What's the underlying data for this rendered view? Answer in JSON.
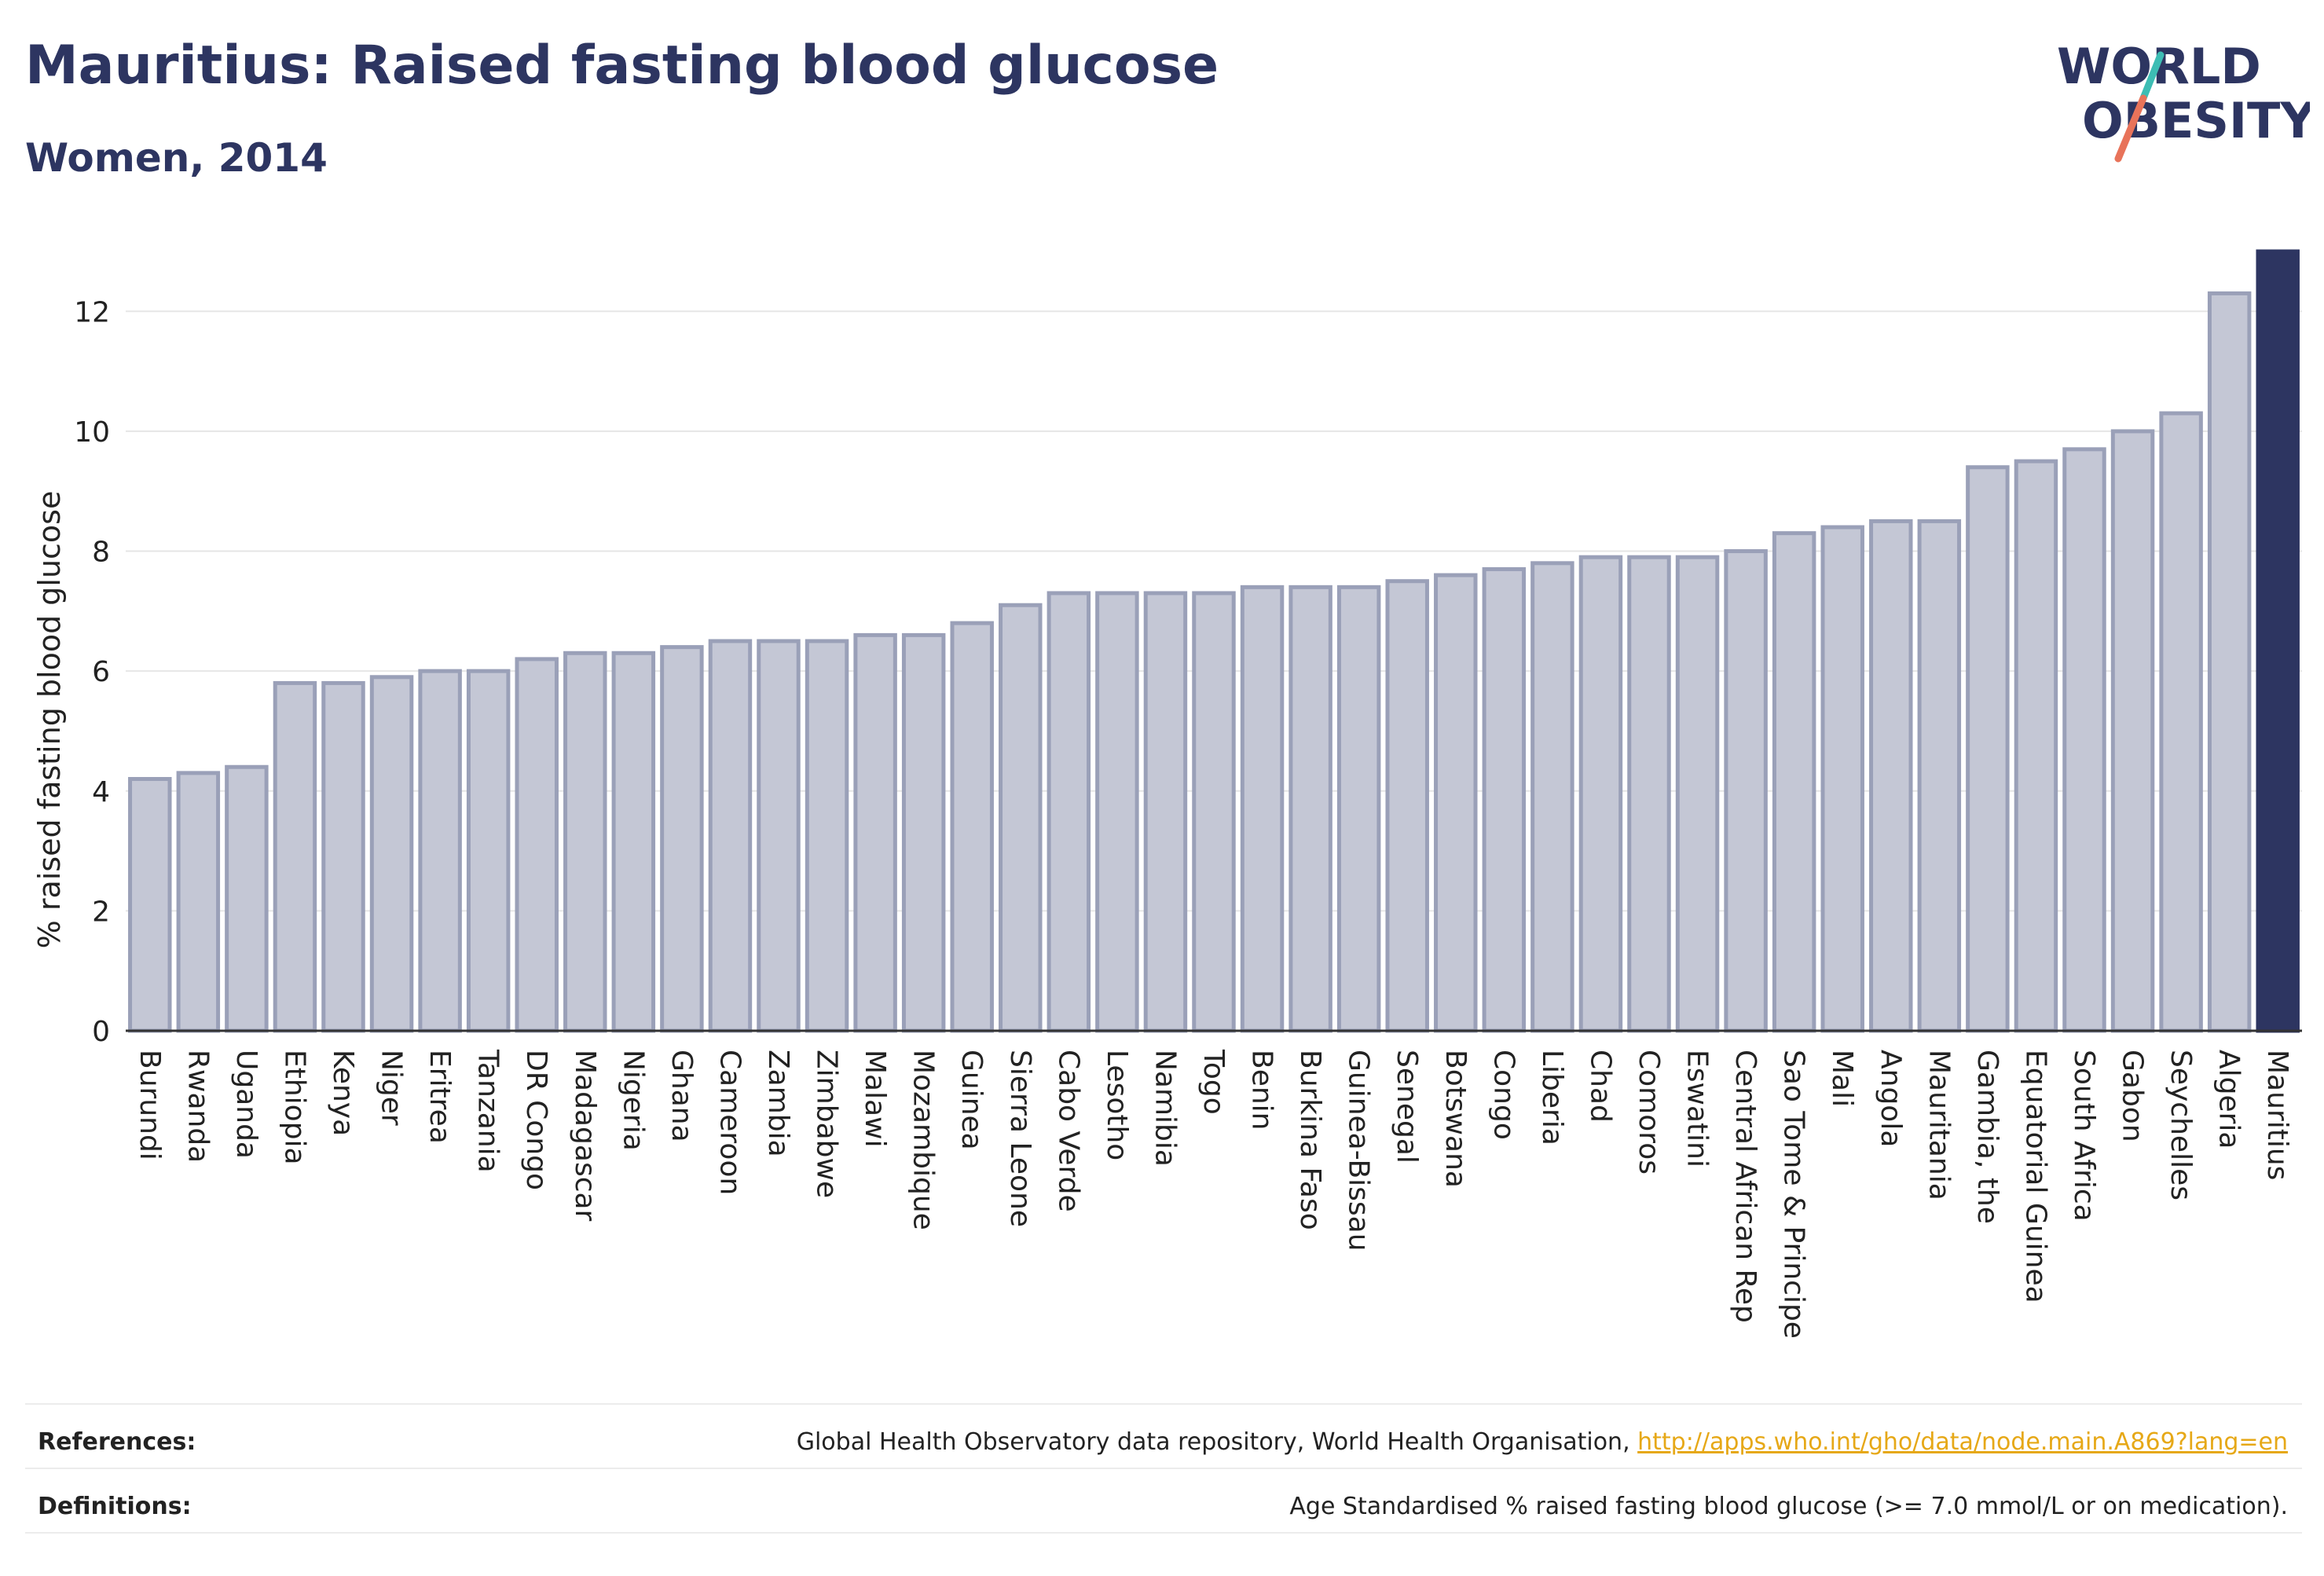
{
  "header": {
    "title": "Mauritius: Raised fasting blood glucose",
    "subtitle": "Women, 2014"
  },
  "logo": {
    "line1": "WORLD",
    "line2": "OBESITY",
    "colors": {
      "text": "#2d3561",
      "slash_teal": "#3dbdb4",
      "slash_coral": "#e8735a"
    }
  },
  "chart_data": {
    "type": "bar",
    "ylabel": "% raised fasting blood glucose",
    "xlabel": "",
    "ylim": [
      0,
      13
    ],
    "yticks": [
      0,
      2,
      4,
      6,
      8,
      10,
      12
    ],
    "grid": true,
    "highlight": "Mauritius",
    "colors": {
      "bar": "#c4c7d5",
      "bar_edge": "#9aa0b8",
      "highlight": "#2d3561",
      "grid": "#e6e6e6"
    },
    "categories": [
      "Burundi",
      "Rwanda",
      "Uganda",
      "Ethiopia",
      "Kenya",
      "Niger",
      "Eritrea",
      "Tanzania",
      "DR Congo",
      "Madagascar",
      "Nigeria",
      "Ghana",
      "Cameroon",
      "Zambia",
      "Zimbabwe",
      "Malawi",
      "Mozambique",
      "Guinea",
      "Sierra Leone",
      "Cabo Verde",
      "Lesotho",
      "Namibia",
      "Togo",
      "Benin",
      "Burkina Faso",
      "Guinea-Bissau",
      "Senegal",
      "Botswana",
      "Congo",
      "Liberia",
      "Chad",
      "Comoros",
      "Eswatini",
      "Central African Rep",
      "Sao Tome & Principe",
      "Mali",
      "Angola",
      "Mauritania",
      "Gambia, the",
      "Equatorial Guinea",
      "South Africa",
      "Gabon",
      "Seychelles",
      "Algeria",
      "Mauritius"
    ],
    "values": [
      4.2,
      4.3,
      4.4,
      5.8,
      5.8,
      5.9,
      6.0,
      6.0,
      6.2,
      6.3,
      6.3,
      6.4,
      6.5,
      6.5,
      6.5,
      6.6,
      6.6,
      6.8,
      7.1,
      7.3,
      7.3,
      7.3,
      7.3,
      7.4,
      7.4,
      7.4,
      7.5,
      7.6,
      7.7,
      7.8,
      7.9,
      7.9,
      7.9,
      8.0,
      8.3,
      8.4,
      8.5,
      8.5,
      9.4,
      9.5,
      9.7,
      10.0,
      10.3,
      12.3,
      13.0
    ]
  },
  "footer": {
    "references_label": "References:",
    "references_text": "Global Health Observatory data repository, World Health Organisation, ",
    "references_link": "http://apps.who.int/gho/data/node.main.A869?lang=en",
    "definitions_label": "Definitions:",
    "definitions_text": "Age Standardised % raised fasting blood glucose (>= 7.0 mmol/L or on medication)."
  }
}
